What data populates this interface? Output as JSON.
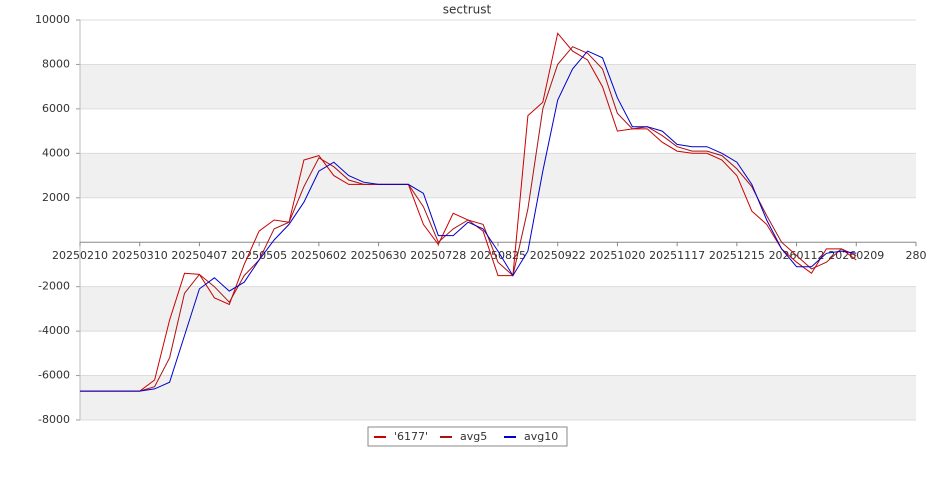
{
  "chart_data": {
    "type": "line",
    "title": "sectrust",
    "x": [
      "20250210",
      "20250217",
      "20250224",
      "20250303",
      "20250310",
      "20250317",
      "20250324",
      "20250331",
      "20250407",
      "20250414",
      "20250421",
      "20250428",
      "20250505",
      "20250512",
      "20250519",
      "20250526",
      "20250602",
      "20250609",
      "20250616",
      "20250623",
      "20250630",
      "20250707",
      "20250714",
      "20250721",
      "20250728",
      "20250804",
      "20250811",
      "20250818",
      "20250825",
      "20250901",
      "20250908",
      "20250915",
      "20250922",
      "20250929",
      "20251006",
      "20251013",
      "20251020",
      "20251027",
      "20251103",
      "20251110",
      "20251117",
      "20251124",
      "20251201",
      "20251208",
      "20251215",
      "20251222",
      "20251229",
      "20260105",
      "20260112",
      "20260119",
      "20260126",
      "20260202",
      "20260209"
    ],
    "series": [
      {
        "name": "'6177'",
        "color": "#cc0000",
        "values": [
          -6700,
          -6700,
          -6700,
          -6700,
          -6700,
          -6200,
          -3500,
          -1400,
          -1450,
          -2500,
          -2800,
          -1000,
          500,
          1000,
          900,
          3700,
          3900,
          3000,
          2600,
          2600,
          2600,
          2600,
          2600,
          800,
          -100,
          1300,
          1000,
          500,
          -1500,
          -1500,
          5700,
          6300,
          9400,
          8600,
          8200,
          7000,
          5000,
          5100,
          5100,
          4500,
          4100,
          4000,
          4000,
          3700,
          3000,
          1400,
          800,
          -300,
          -900,
          -1400,
          -300,
          -300,
          -800
        ]
      },
      {
        "name": "avg5",
        "color": "#aa1111",
        "values": [
          -6700,
          -6700,
          -6700,
          -6700,
          -6700,
          -6500,
          -5200,
          -2300,
          -1450,
          -2000,
          -2700,
          -1500,
          -800,
          600,
          900,
          2500,
          3800,
          3400,
          2800,
          2600,
          2600,
          2600,
          2600,
          1600,
          0,
          600,
          1000,
          800,
          -900,
          -1500,
          1500,
          6000,
          8000,
          8800,
          8500,
          7800,
          5800,
          5100,
          5200,
          4800,
          4300,
          4100,
          4100,
          3900,
          3300,
          2500,
          1200,
          0,
          -600,
          -1200,
          -900,
          -300,
          -600
        ]
      },
      {
        "name": "avg10",
        "color": "#0000cc",
        "values": [
          -6700,
          -6700,
          -6700,
          -6700,
          -6700,
          -6600,
          -6300,
          -4200,
          -2100,
          -1600,
          -2200,
          -1800,
          -800,
          100,
          800,
          1800,
          3200,
          3600,
          3000,
          2700,
          2600,
          2600,
          2600,
          2200,
          300,
          300,
          900,
          600,
          -400,
          -1500,
          -400,
          3200,
          6400,
          7800,
          8600,
          8300,
          6500,
          5200,
          5200,
          5000,
          4400,
          4300,
          4300,
          4000,
          3600,
          2600,
          1000,
          -300,
          -1100,
          -1100,
          -500,
          -400,
          -500
        ]
      }
    ],
    "xlim": [
      "20250210",
      "20260309"
    ],
    "xticks": [
      "20250210",
      "20250310",
      "20250407",
      "20250505",
      "20250602",
      "20250630",
      "20250728",
      "20250825",
      "20250922",
      "20251020",
      "20251117",
      "20251215",
      "20260112",
      "20260209",
      {
        "value": "20260309",
        "label": "280"
      }
    ],
    "ylim": [
      -8000,
      10000
    ],
    "yticks": [
      -8000,
      -6000,
      -4000,
      -2000,
      2000,
      4000,
      6000,
      8000,
      10000
    ],
    "grid": "bands"
  }
}
